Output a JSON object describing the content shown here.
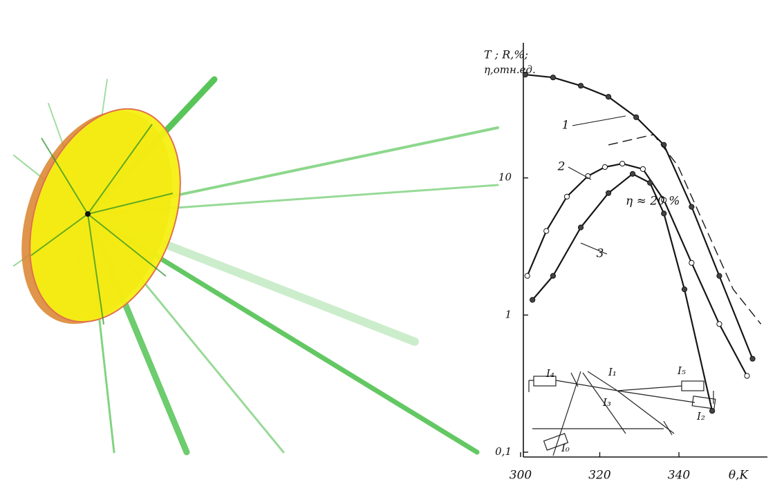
{
  "chart_data": {
    "type": "line",
    "y_label": [
      "T ; R,%;",
      "η,отн.ед."
    ],
    "x_label": "θ,K",
    "xlim": [
      300,
      362
    ],
    "xticks": [
      300,
      320,
      340
    ],
    "ylim": [
      0.1,
      93
    ],
    "yticks": [
      {
        "value": 0.1,
        "label": "0,1"
      },
      1,
      10
    ],
    "log_y": true,
    "series": [
      {
        "name": "1",
        "color": "#151515",
        "dash": false,
        "x": [
          301.2,
          308.2,
          315.2,
          322.2,
          329.2,
          336.2,
          343.2,
          350.2,
          358.6
        ],
        "values": [
          56.6,
          54,
          47,
          39,
          27.7,
          17.4,
          6.15,
          1.93,
          0.48
        ]
      },
      {
        "name": "2",
        "color": "#151515",
        "dash": false,
        "x": [
          301.7,
          306.5,
          311.7,
          317,
          321.3,
          325.7,
          330.9,
          336.2,
          343.2,
          350.2,
          357.2
        ],
        "values": [
          1.93,
          4.1,
          7.3,
          10.3,
          12,
          12.7,
          11.6,
          6.9,
          2.4,
          0.86,
          0.36
        ]
      },
      {
        "name": "3",
        "color": "#151515",
        "dash": false,
        "x": [
          303,
          308.2,
          315.2,
          322.2,
          328.3,
          332.7,
          336.2,
          341.4,
          348.4
        ],
        "values": [
          1.29,
          1.93,
          4.35,
          7.75,
          10.7,
          9.2,
          5.5,
          1.54,
          0.2
        ]
      },
      {
        "color": "#151515",
        "dash": true,
        "x": [
          322.2,
          333.6,
          339.7,
          346.7,
          353.7,
          360.7
        ],
        "values": [
          17.4,
          20.7,
          12.3,
          4.35,
          1.54,
          0.86
        ]
      }
    ],
    "annotations": [
      "η ≈ 20 %",
      "I₄",
      "I₁",
      "I₅",
      "I₃",
      "I₂",
      "I₀"
    ]
  }
}
